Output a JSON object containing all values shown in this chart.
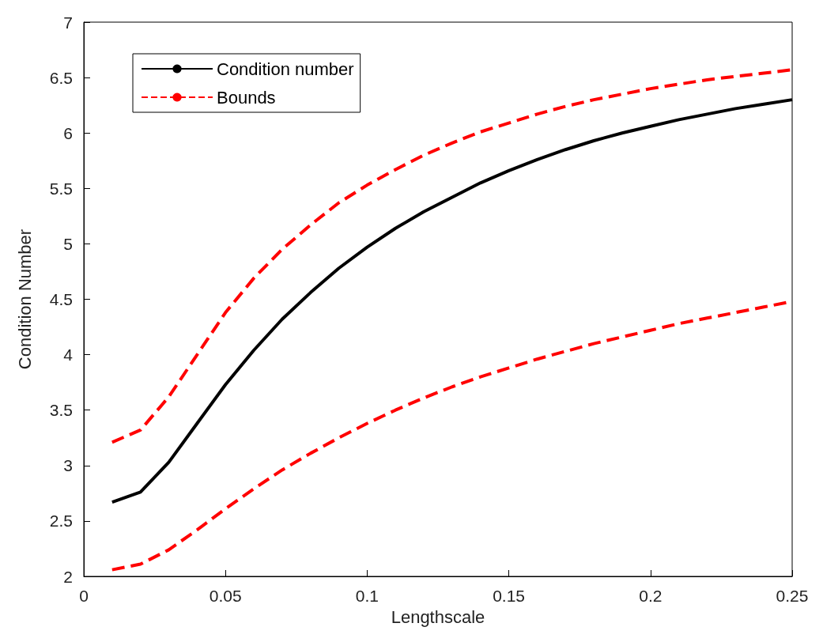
{
  "chart_data": {
    "type": "line",
    "xlabel": "Lengthscale",
    "ylabel": "Condition Number",
    "x": [
      0.01,
      0.02,
      0.03,
      0.04,
      0.05,
      0.06,
      0.07,
      0.08,
      0.09,
      0.1,
      0.11,
      0.12,
      0.13,
      0.14,
      0.15,
      0.16,
      0.17,
      0.18,
      0.19,
      0.2,
      0.21,
      0.22,
      0.23,
      0.24,
      0.25
    ],
    "series": [
      {
        "name": "Condition number",
        "color": "#000000",
        "line_style": "solid",
        "values": [
          2.67,
          2.76,
          3.03,
          3.38,
          3.73,
          4.04,
          4.32,
          4.56,
          4.78,
          4.97,
          5.14,
          5.29,
          5.42,
          5.55,
          5.66,
          5.76,
          5.85,
          5.93,
          6.0,
          6.06,
          6.12,
          6.17,
          6.22,
          6.26,
          6.3
        ]
      },
      {
        "name": "Bounds",
        "color": "#ff0000",
        "line_style": "dashed",
        "values": [
          3.21,
          3.32,
          3.62,
          4.0,
          4.38,
          4.69,
          4.95,
          5.17,
          5.37,
          5.53,
          5.67,
          5.8,
          5.91,
          6.01,
          6.09,
          6.17,
          6.24,
          6.3,
          6.35,
          6.4,
          6.44,
          6.48,
          6.51,
          6.54,
          6.57
        ]
      },
      {
        "color": "#ff0000",
        "line_style": "dashed",
        "values": [
          2.06,
          2.11,
          2.24,
          2.42,
          2.61,
          2.79,
          2.96,
          3.11,
          3.25,
          3.38,
          3.5,
          3.61,
          3.71,
          3.8,
          3.88,
          3.96,
          4.03,
          4.1,
          4.16,
          4.22,
          4.28,
          4.33,
          4.38,
          4.43,
          4.48
        ]
      }
    ],
    "xlim": [
      0,
      0.25
    ],
    "xticks": [
      0,
      0.05,
      0.1,
      0.15,
      0.2,
      0.25
    ],
    "ylim": [
      2,
      7
    ],
    "yticks": [
      2,
      2.5,
      3,
      3.5,
      4,
      4.5,
      5,
      5.5,
      6,
      6.5,
      7
    ],
    "grid": false,
    "legend": "top left",
    "marker": "none"
  }
}
